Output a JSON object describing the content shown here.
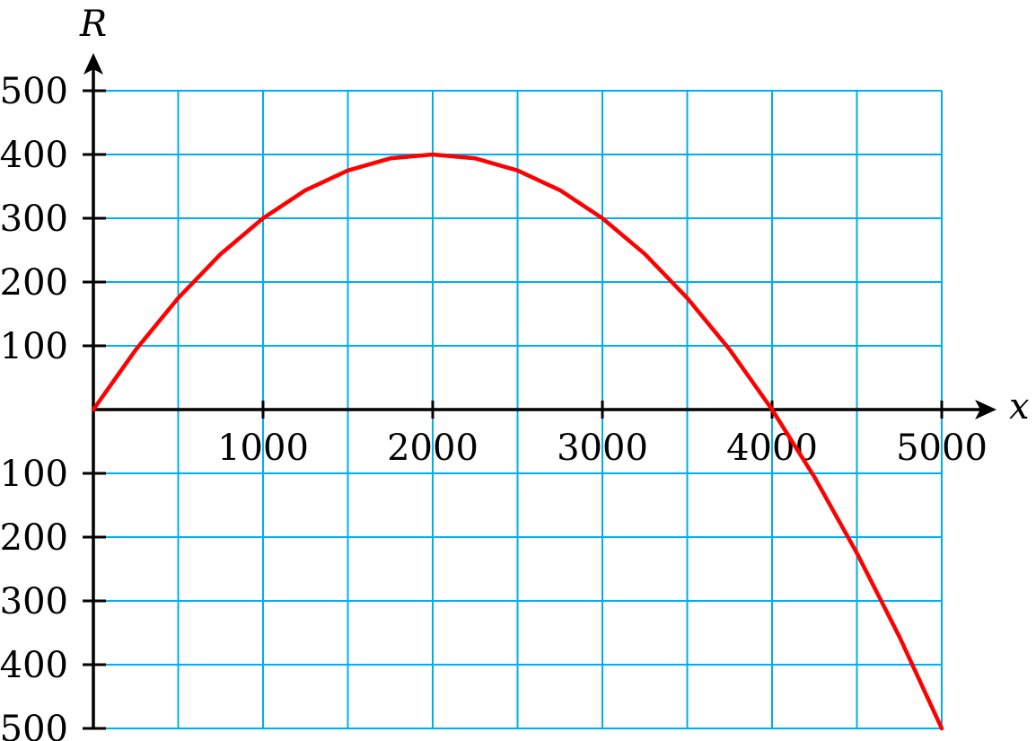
{
  "chart_data": {
    "type": "line",
    "title": "",
    "xlabel": "x",
    "ylabel": "R",
    "xlim": [
      0,
      5000
    ],
    "ylim": [
      -500,
      500
    ],
    "grid": true,
    "x_tick_labels": [
      "1000",
      "2000",
      "3000",
      "4000",
      "5000"
    ],
    "x_ticks": [
      1000,
      2000,
      3000,
      4000,
      5000
    ],
    "y_tick_labels": [
      "500",
      "400",
      "300",
      "200",
      "100",
      "100",
      "200",
      "300",
      "400",
      "500"
    ],
    "y_ticks": [
      500,
      400,
      300,
      200,
      100,
      -100,
      -200,
      -300,
      -400,
      -500
    ],
    "series": [
      {
        "x": [
          0,
          250,
          500,
          750,
          1000,
          1250,
          1500,
          1750,
          2000,
          2250,
          2500,
          2750,
          3000,
          3250,
          3500,
          3750,
          4000,
          4250,
          4500,
          4750,
          5000
        ],
        "values": [
          0,
          94,
          175,
          244,
          300,
          344,
          375,
          394,
          400,
          394,
          375,
          344,
          300,
          244,
          175,
          94,
          0,
          -106,
          -225,
          -356,
          -500
        ]
      }
    ],
    "colors": {
      "curve": "#ff0000",
      "grid": "#00aeef",
      "axis": "#000000"
    }
  }
}
